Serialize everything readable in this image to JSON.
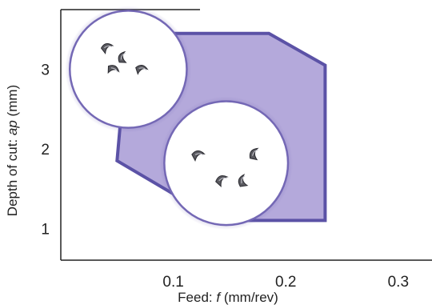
{
  "chart_data": {
    "type": "area",
    "title": "",
    "xlabel": {
      "prefix": "Feed: ",
      "symbol": "f",
      "suffix": " (mm/rev)"
    },
    "ylabel": {
      "prefix": "Depth of cut: ",
      "symbol": "ap",
      "suffix": " (mm)"
    },
    "xlim": [
      0.0,
      0.33
    ],
    "ylim": [
      0.6,
      3.75
    ],
    "x_ticks": [
      0.1,
      0.2,
      0.3
    ],
    "x_tick_labels": [
      "0.1",
      "0.2",
      "0.3"
    ],
    "y_ticks": [
      1,
      2,
      3
    ],
    "y_tick_labels": [
      "1",
      "2",
      "3"
    ],
    "grid": false,
    "region": {
      "name": "",
      "x": [
        0.06,
        0.1,
        0.185,
        0.235,
        0.235,
        0.14,
        0.05
      ],
      "y": [
        3.45,
        3.45,
        3.45,
        3.05,
        1.1,
        1.1,
        1.85
      ]
    },
    "chip_insets": [
      {
        "id": "top-left",
        "x": 0.06,
        "y": 3.0,
        "radius_axis": "x",
        "radius": 0.052,
        "chip_count": 4
      },
      {
        "id": "lower-center",
        "x": 0.147,
        "y": 1.82,
        "radius_axis": "x",
        "radius": 0.055,
        "chip_count": 4
      }
    ],
    "colors": {
      "region_fill": "#b4a9db",
      "region_stroke": "#5b52a6",
      "inset_stroke": "#7468b5",
      "axis": "#222222"
    }
  }
}
